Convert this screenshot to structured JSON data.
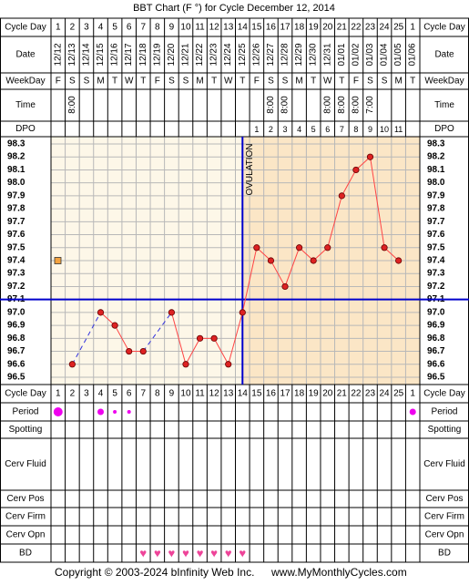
{
  "title": "BBT Chart (F °) for Cycle December 12, 2014",
  "footer": {
    "copyright": "Copyright © 2003-2024 bInfinity Web Inc.",
    "site": "www.MyMonthlyCycles.com"
  },
  "row_labels": {
    "cycle_day": "Cycle Day",
    "date": "Date",
    "weekday": "WeekDay",
    "time": "Time",
    "dpo": "DPO",
    "period": "Period",
    "spotting": "Spotting",
    "cerv_fluid": "Cerv Fluid",
    "cerv_pos": "Cerv Pos",
    "cerv_firm": "Cerv Firm",
    "cerv_opn": "Cerv Opn",
    "bd": "BD"
  },
  "cycle_days": [
    "1",
    "2",
    "3",
    "4",
    "5",
    "6",
    "7",
    "8",
    "9",
    "10",
    "11",
    "12",
    "13",
    "14",
    "15",
    "16",
    "17",
    "18",
    "19",
    "20",
    "21",
    "22",
    "23",
    "24",
    "25",
    "1"
  ],
  "dates": [
    "12/12",
    "12/13",
    "12/14",
    "12/15",
    "12/16",
    "12/17",
    "12/18",
    "12/19",
    "12/20",
    "12/21",
    "12/22",
    "12/23",
    "12/24",
    "12/25",
    "12/26",
    "12/27",
    "12/28",
    "12/29",
    "12/30",
    "12/31",
    "01/01",
    "01/02",
    "01/03",
    "01/04",
    "01/05",
    "01/06"
  ],
  "weekdays": [
    "F",
    "S",
    "S",
    "M",
    "T",
    "W",
    "T",
    "F",
    "S",
    "S",
    "M",
    "T",
    "W",
    "T",
    "F",
    "S",
    "S",
    "M",
    "T",
    "W",
    "T",
    "F",
    "S",
    "S",
    "M",
    "T"
  ],
  "times": [
    "",
    "8:00",
    "",
    "",
    "",
    "",
    "",
    "",
    "",
    "",
    "",
    "",
    "",
    "",
    "",
    "8:00",
    "8:00",
    "",
    "",
    "8:00",
    "8:00",
    "8:00",
    "7:00",
    "",
    "",
    ""
  ],
  "dpo": [
    "",
    "",
    "",
    "",
    "",
    "",
    "",
    "",
    "",
    "",
    "",
    "",
    "",
    "",
    "1",
    "2",
    "3",
    "4",
    "5",
    "6",
    "7",
    "8",
    "9",
    "10",
    "11",
    ""
  ],
  "chart_data": {
    "type": "line",
    "x": [
      1,
      2,
      3,
      4,
      5,
      6,
      7,
      8,
      9,
      10,
      11,
      12,
      13,
      14,
      15,
      16,
      17,
      18,
      19,
      20,
      21,
      22,
      23,
      24,
      25,
      26
    ],
    "y_ticks": [
      "98.3",
      "98.2",
      "98.1",
      "98.0",
      "97.9",
      "97.8",
      "97.7",
      "97.6",
      "97.5",
      "97.4",
      "97.3",
      "97.2",
      "97.1",
      "97.0",
      "96.9",
      "96.8",
      "96.7",
      "96.6",
      "96.5"
    ],
    "ylim": [
      96.5,
      98.3
    ],
    "temperatures": [
      null,
      96.6,
      null,
      97.0,
      96.9,
      96.7,
      96.7,
      null,
      97.0,
      96.6,
      96.8,
      96.8,
      96.6,
      97.0,
      97.5,
      97.4,
      97.2,
      97.5,
      97.4,
      97.5,
      97.9,
      98.1,
      98.2,
      97.5,
      97.4,
      null
    ],
    "coverline": 97.1,
    "ovulation_day": 14,
    "ovulation_label": "OVULATION",
    "marker_square": 97.4,
    "colors": {
      "line": "#ff4444",
      "point_fill": "#dd2222",
      "dashed": "#3333dd",
      "coverline": "#0000cc",
      "pre_bg": "#fdf7e8",
      "post_bg": "#fbe6c6",
      "period": "#ee00ee",
      "heart": "#ee4499"
    }
  },
  "period": [
    3,
    4,
    4,
    2,
    1,
    1,
    0,
    0,
    0,
    0,
    0,
    0,
    0,
    0,
    0,
    0,
    0,
    0,
    0,
    0,
    0,
    0,
    0,
    0,
    0,
    2
  ],
  "bd": [
    false,
    false,
    false,
    false,
    false,
    false,
    true,
    true,
    true,
    true,
    true,
    true,
    true,
    true,
    false,
    false,
    false,
    false,
    false,
    false,
    false,
    false,
    false,
    false,
    false,
    false
  ]
}
